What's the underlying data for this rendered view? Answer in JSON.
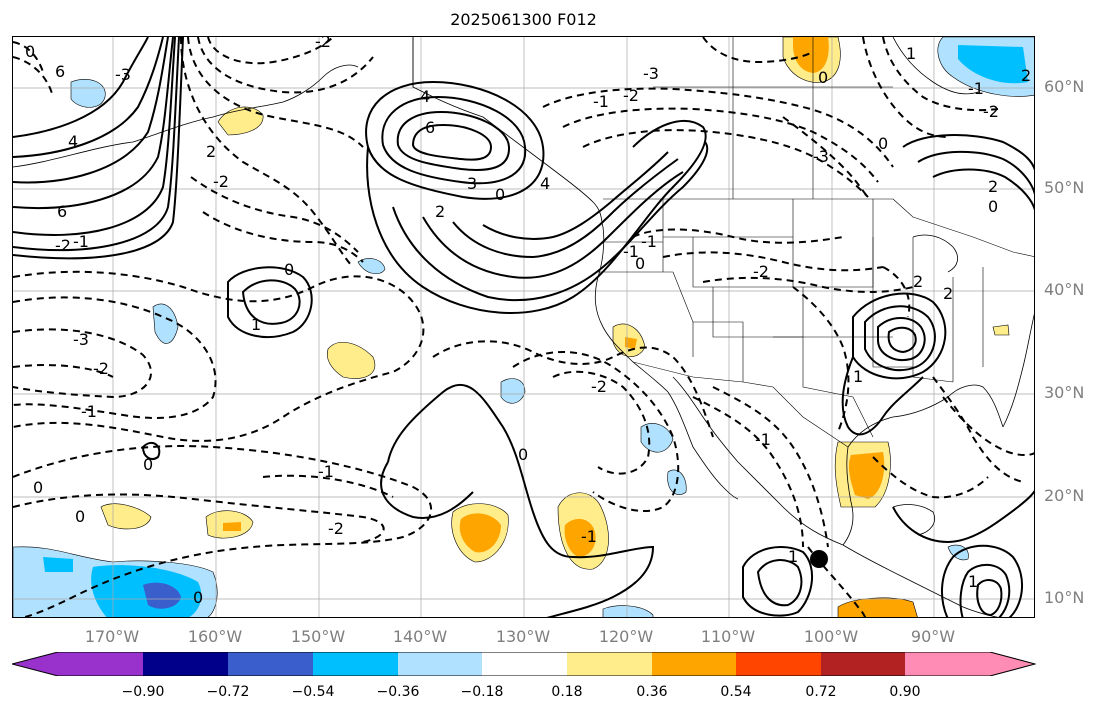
{
  "title": "2025061300 F012",
  "lat_labels": [
    "60°N",
    "50°N",
    "40°N",
    "30°N",
    "20°N",
    "10°N"
  ],
  "lon_labels": [
    "170°W",
    "160°W",
    "150°W",
    "140°W",
    "130°W",
    "120°W",
    "110°W",
    "100°W",
    "90°W"
  ],
  "colorbar": {
    "colors": [
      "#9932cc",
      "#00008b",
      "#3a5fcd",
      "#00bfff",
      "#b0e2ff",
      "#ffffff",
      "#ffec8b",
      "#ffa500",
      "#ff4500",
      "#b22222",
      "#ff8cb4"
    ],
    "tick_labels": [
      "−0.90",
      "−0.72",
      "−0.54",
      "−0.36",
      "−0.18",
      "0.18",
      "0.36",
      "0.54",
      "0.72",
      "0.90"
    ]
  },
  "contour_labels": {
    "c1": "-3",
    "c2": "-2",
    "c3": "-1",
    "c4": "0",
    "c5": "-1",
    "c6": "0",
    "c7": "-2",
    "c8": "-1",
    "c9": "0",
    "c10": "-3",
    "c11": "-2",
    "c12": "-1",
    "c13": "0",
    "c14": "6",
    "c15": "4",
    "c16": "6",
    "c17": "2",
    "c18": "-2",
    "c19": "-2",
    "c20": "6",
    "c21": "4",
    "c22": "3",
    "c23": "2",
    "c24": "0",
    "c25": "4",
    "c26": "0",
    "c27": "1",
    "c28": "-1",
    "c29": "-3",
    "c30": "0",
    "c31": "-2",
    "c32": "-1",
    "c33": "0",
    "c34": "1",
    "c35": "-2",
    "c36": "-3",
    "c37": "0",
    "c38": "2",
    "c39": "2",
    "c40": "0",
    "c41": "-1",
    "c42": "-2",
    "c43": "1",
    "c44": "1",
    "c45": "-2",
    "c46": "2",
    "c47": "-1",
    "c48": "0",
    "c49": "1",
    "c50": "0",
    "c51": "2",
    "c52": "-1"
  },
  "marker": "black-dot"
}
